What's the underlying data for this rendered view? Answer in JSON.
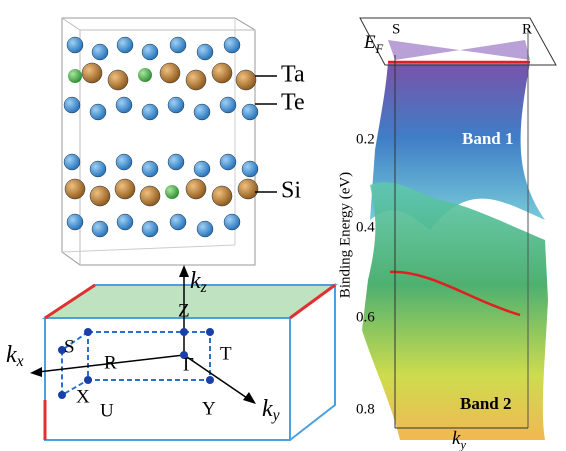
{
  "crystal": {
    "labels": [
      "Ta",
      "Te",
      "Si"
    ]
  },
  "brillouin_zone": {
    "axes": [
      {
        "main": "k",
        "sub": "x"
      },
      {
        "main": "k",
        "sub": "y"
      },
      {
        "main": "k",
        "sub": "z"
      }
    ],
    "points": [
      "Z",
      "S",
      "R",
      "Γ",
      "T",
      "X",
      "U",
      "Y"
    ]
  },
  "bands": {
    "fermi": {
      "main": "E",
      "sub": "F"
    },
    "corner_labels": [
      "S",
      "R"
    ],
    "band_labels": [
      "Band 1",
      "Band 2"
    ],
    "y_axis_label": "Binding Energy (eV)",
    "y_ticks": [
      0.2,
      0.4,
      0.6,
      0.8
    ],
    "x_axis_label": {
      "main": "k",
      "sub": "y"
    }
  }
}
